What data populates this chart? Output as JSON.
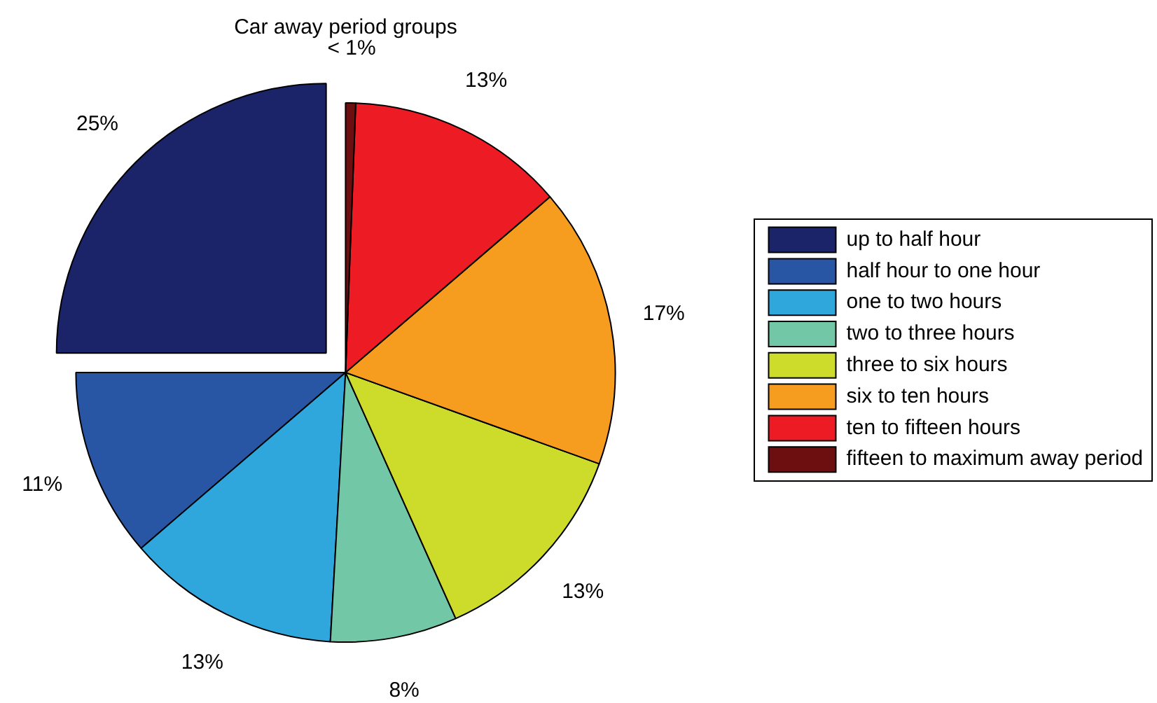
{
  "chart_data": {
    "type": "pie",
    "title": "Car away period groups",
    "categories": [
      "up to half hour",
      "half hour to one hour",
      "one to two hours",
      "two to three hours",
      "three to six hours",
      "six to ten hours",
      "ten to fifteen hours",
      "fifteen to maximum away period"
    ],
    "values": [
      25,
      11.3,
      12.8,
      7.6,
      12.8,
      16.8,
      13.1,
      0.6
    ],
    "colors": [
      "#1b2369",
      "#2955a5",
      "#2fa7dd",
      "#72c7a7",
      "#cddc2b",
      "#f69c1f",
      "#ed1c24",
      "#6d0f10"
    ],
    "value_labels": [
      "25%",
      "11%",
      "13%",
      "8%",
      "13%",
      "17%",
      "13%",
      "< 1%"
    ],
    "legend": "right"
  }
}
